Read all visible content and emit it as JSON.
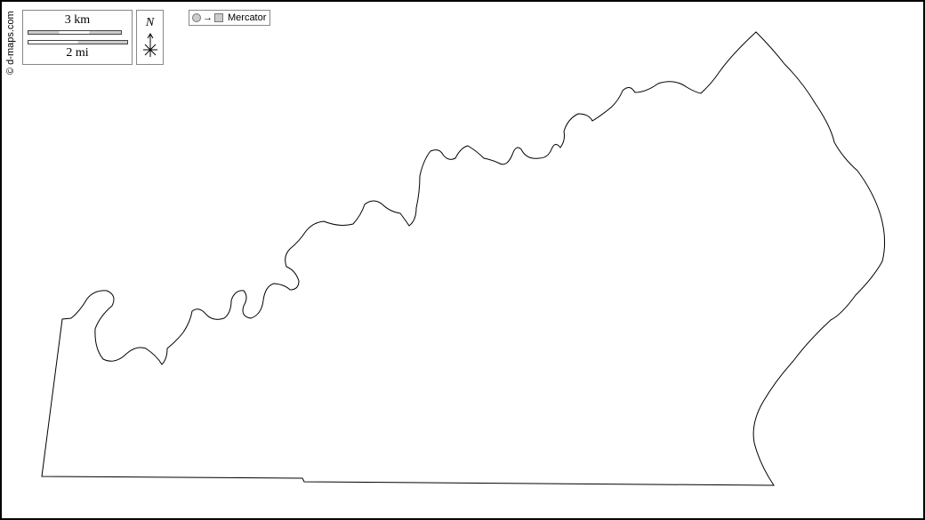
{
  "credit": "© d-maps.com",
  "scale": {
    "km_label": "3 km",
    "mi_label": "2 mi"
  },
  "north": {
    "label": "N"
  },
  "projection": {
    "arrow": "→",
    "label": "Mercator"
  },
  "colors": {
    "outline": "#000000",
    "scale_fill": "#cccccc",
    "background": "#ffffff"
  }
}
